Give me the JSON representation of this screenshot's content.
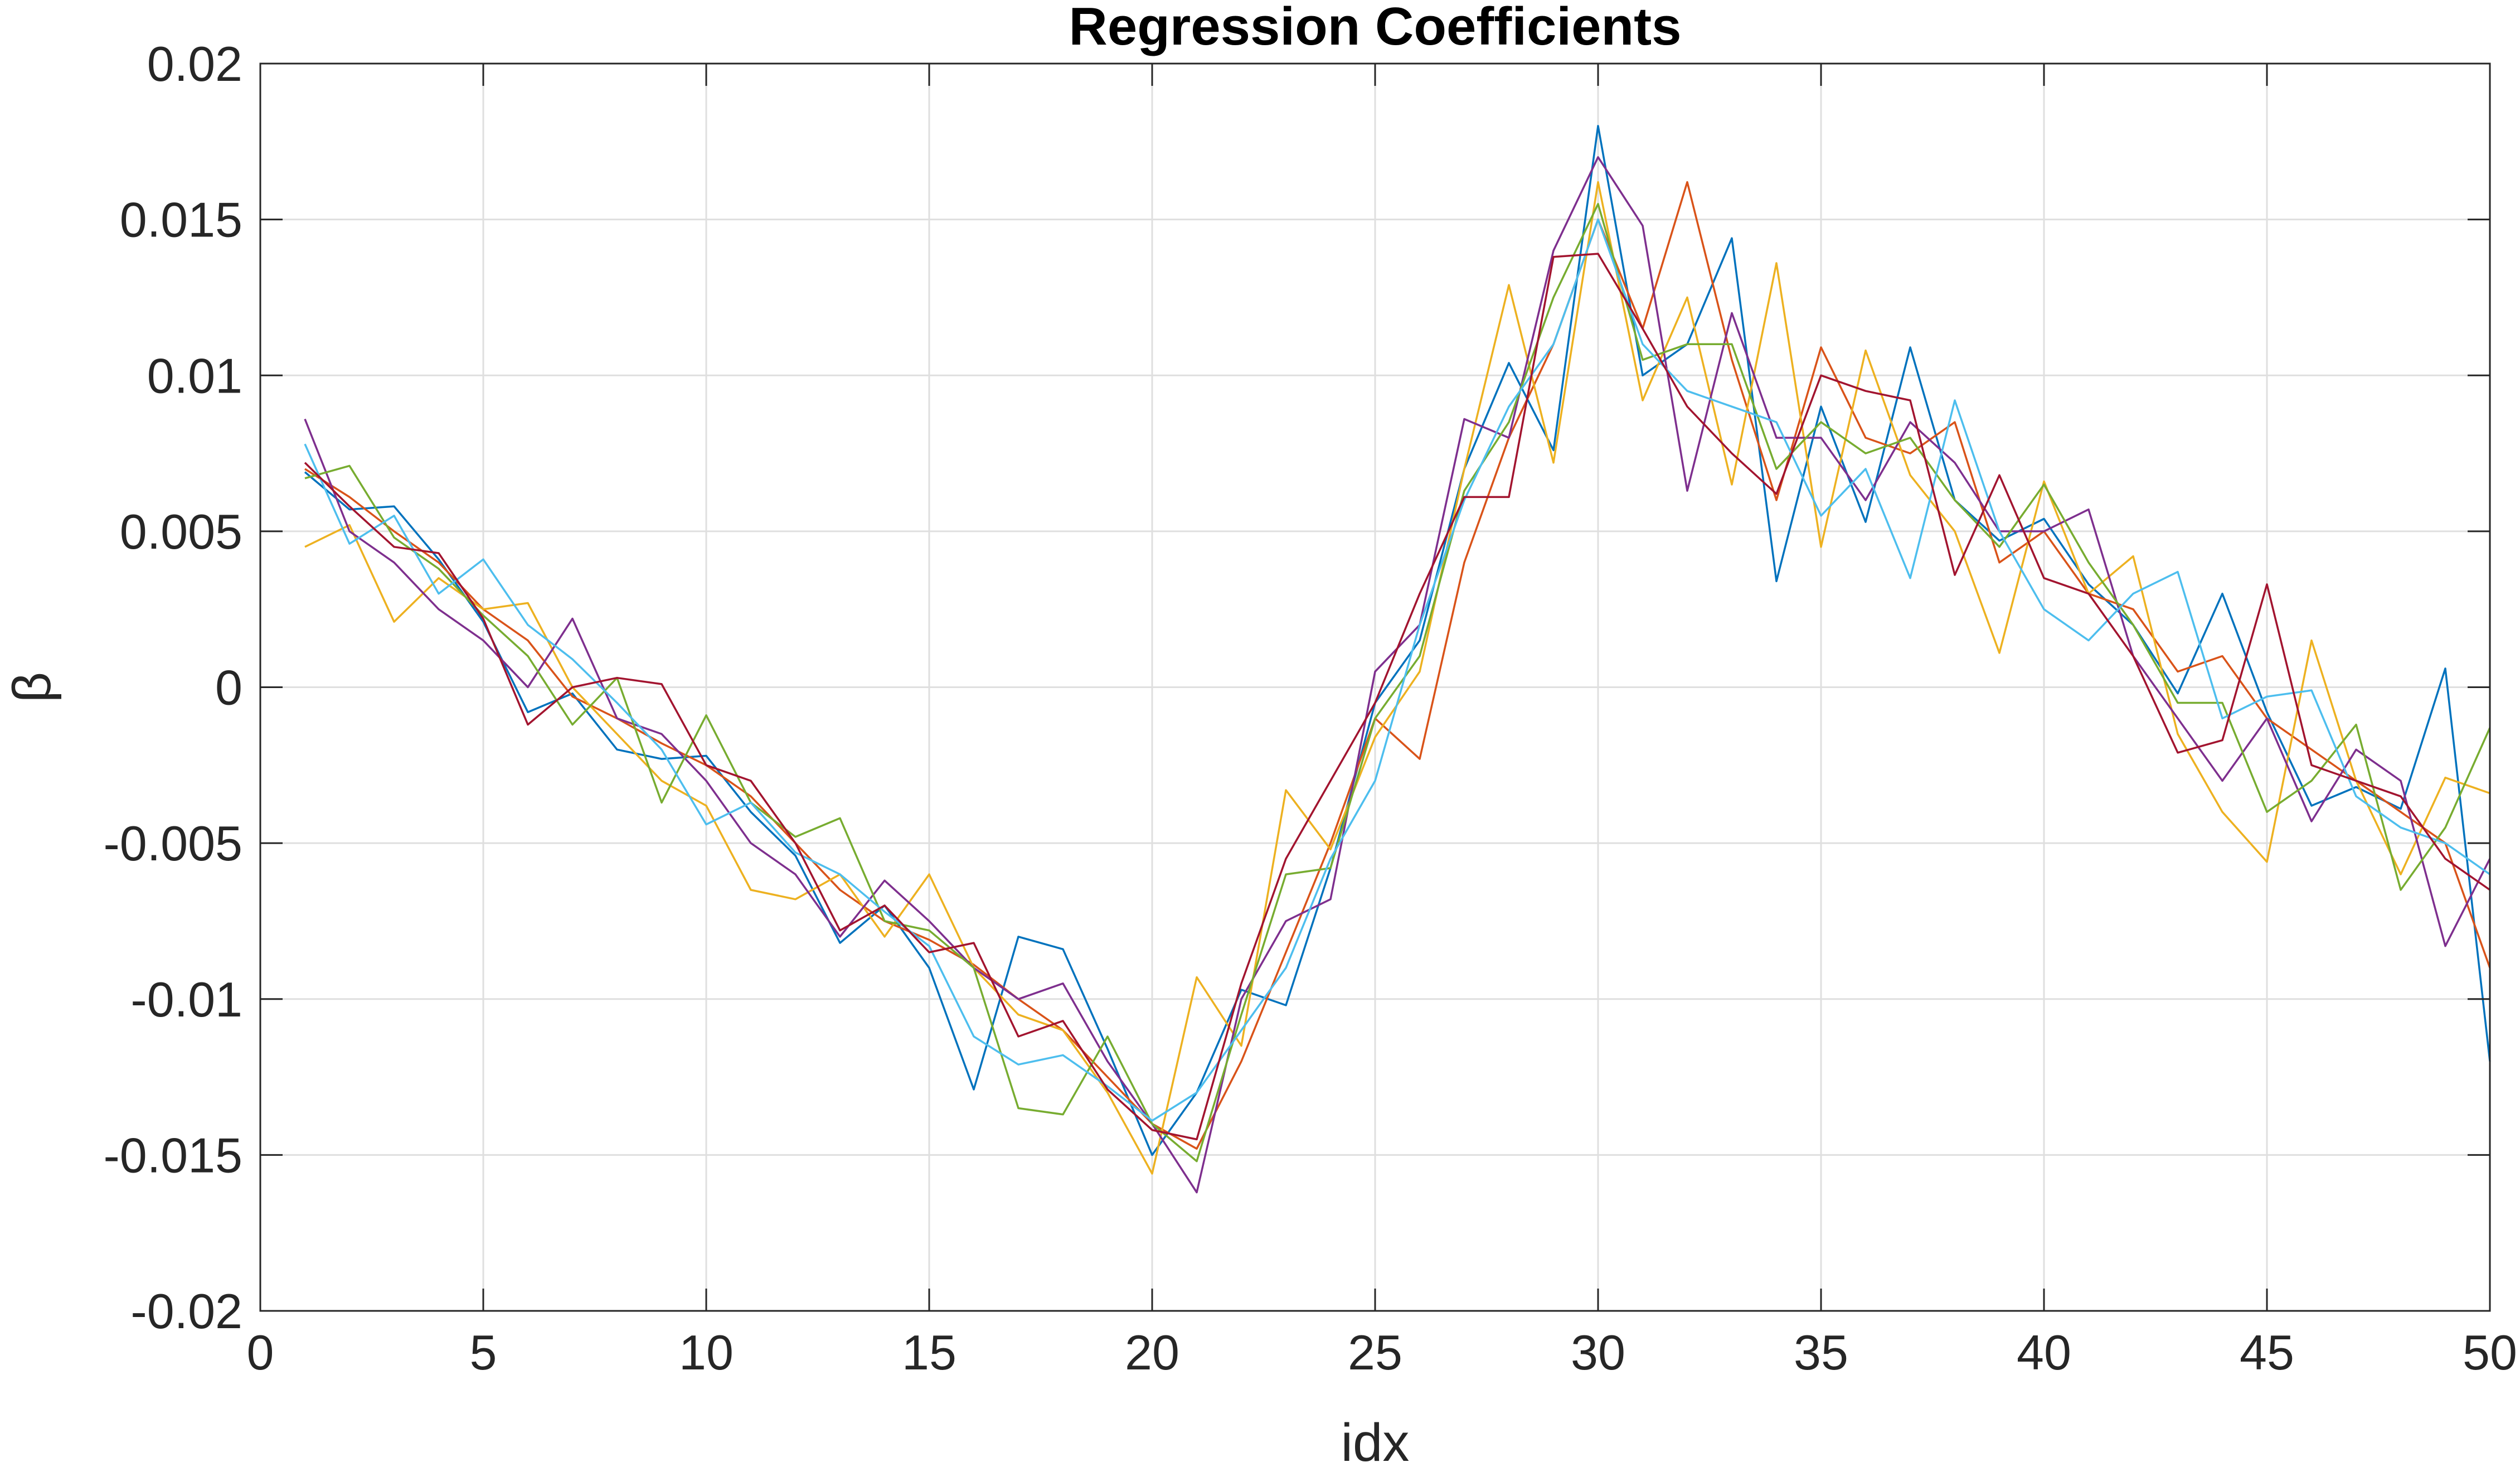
{
  "chart_data": {
    "type": "line",
    "title": "Regression Coefficients",
    "xlabel": "idx",
    "ylabel": "β",
    "xlim": [
      0,
      50
    ],
    "ylim": [
      -0.02,
      0.02
    ],
    "grid": true,
    "x_ticks": [
      0,
      5,
      10,
      15,
      20,
      25,
      30,
      35,
      40,
      45,
      50
    ],
    "x_tick_labels": [
      "0",
      "5",
      "10",
      "15",
      "20",
      "25",
      "30",
      "35",
      "40",
      "45",
      "50"
    ],
    "y_ticks": [
      -0.02,
      -0.015,
      -0.01,
      -0.005,
      0,
      0.005,
      0.01,
      0.015,
      0.02
    ],
    "y_tick_labels": [
      "-0.02",
      "-0.015",
      "-0.01",
      "-0.005",
      "0",
      "0.005",
      "0.01",
      "0.015",
      "0.02"
    ],
    "x": [
      1,
      2,
      3,
      4,
      5,
      6,
      7,
      8,
      9,
      10,
      11,
      12,
      13,
      14,
      15,
      16,
      17,
      18,
      19,
      20,
      21,
      22,
      23,
      24,
      25,
      26,
      27,
      28,
      29,
      30,
      31,
      32,
      33,
      34,
      35,
      36,
      37,
      38,
      39,
      40,
      41,
      42,
      43,
      44,
      45,
      46,
      47,
      48,
      49,
      50
    ],
    "series": [
      {
        "color": "#0072BD",
        "values": [
          0.0069,
          0.0057,
          0.0058,
          0.0041,
          0.0021,
          -0.0008,
          -0.0002,
          -0.002,
          -0.0023,
          -0.0022,
          -0.004,
          -0.0054,
          -0.0082,
          -0.007,
          -0.009,
          -0.0129,
          -0.008,
          -0.0084,
          -0.0116,
          -0.015,
          -0.013,
          -0.0097,
          -0.0102,
          -0.0058,
          -0.0005,
          0.0015,
          0.007,
          0.0104,
          0.0076,
          0.018,
          0.01,
          0.011,
          0.0144,
          0.0034,
          0.009,
          0.0053,
          0.0109,
          0.006,
          0.0047,
          0.0054,
          0.0033,
          0.002,
          -0.0002,
          0.003,
          -0.0008,
          -0.0038,
          -0.0032,
          -0.0039,
          0.0006,
          -0.012
        ]
      },
      {
        "color": "#D95319",
        "values": [
          0.007,
          0.0061,
          0.005,
          0.004,
          0.0025,
          0.0015,
          -0.0003,
          -0.001,
          -0.0018,
          -0.0025,
          -0.0035,
          -0.005,
          -0.0065,
          -0.0075,
          -0.0081,
          -0.0089,
          -0.01,
          -0.011,
          -0.0125,
          -0.014,
          -0.0148,
          -0.012,
          -0.0085,
          -0.005,
          -0.001,
          -0.0023,
          0.004,
          0.008,
          0.011,
          0.015,
          0.0115,
          0.0162,
          0.0105,
          0.006,
          0.0109,
          0.008,
          0.0075,
          0.0085,
          0.004,
          0.005,
          0.003,
          0.0025,
          0.0005,
          0.001,
          -0.001,
          -0.002,
          -0.003,
          -0.004,
          -0.005,
          -0.009
        ]
      },
      {
        "color": "#EDB120",
        "values": [
          0.0045,
          0.0052,
          0.0021,
          0.0035,
          0.0025,
          0.0027,
          0.0,
          -0.0015,
          -0.003,
          -0.0038,
          -0.0065,
          -0.0068,
          -0.006,
          -0.008,
          -0.006,
          -0.009,
          -0.0105,
          -0.011,
          -0.013,
          -0.0156,
          -0.0093,
          -0.0115,
          -0.0033,
          -0.0052,
          -0.0016,
          0.0005,
          0.007,
          0.0129,
          0.0072,
          0.0162,
          0.0092,
          0.0125,
          0.0065,
          0.0136,
          0.0045,
          0.0108,
          0.0068,
          0.005,
          0.0011,
          0.0066,
          0.003,
          0.0042,
          -0.0015,
          -0.004,
          -0.0056,
          0.0015,
          -0.003,
          -0.006,
          -0.0029,
          -0.0034
        ]
      },
      {
        "color": "#7E2F8E",
        "values": [
          0.0086,
          0.005,
          0.004,
          0.0025,
          0.0015,
          0.0,
          0.0022,
          -0.001,
          -0.0015,
          -0.003,
          -0.005,
          -0.006,
          -0.008,
          -0.0062,
          -0.0075,
          -0.009,
          -0.01,
          -0.0095,
          -0.012,
          -0.014,
          -0.0162,
          -0.01,
          -0.0075,
          -0.0068,
          0.0005,
          0.002,
          0.0086,
          0.008,
          0.014,
          0.017,
          0.0148,
          0.0063,
          0.012,
          0.008,
          0.008,
          0.006,
          0.0085,
          0.0072,
          0.005,
          0.005,
          0.0057,
          0.001,
          -0.001,
          -0.003,
          -0.001,
          -0.0043,
          -0.002,
          -0.003,
          -0.0083,
          -0.0055
        ]
      },
      {
        "color": "#77AC30",
        "values": [
          0.0067,
          0.0071,
          0.0048,
          0.0038,
          0.0023,
          0.001,
          -0.0012,
          0.0003,
          -0.0037,
          -0.0009,
          -0.0037,
          -0.0048,
          -0.0042,
          -0.0075,
          -0.0078,
          -0.009,
          -0.0135,
          -0.0137,
          -0.0112,
          -0.014,
          -0.0152,
          -0.0105,
          -0.006,
          -0.0058,
          -0.001,
          0.001,
          0.0063,
          0.0085,
          0.0125,
          0.0155,
          0.0105,
          0.011,
          0.011,
          0.007,
          0.0085,
          0.0075,
          0.008,
          0.006,
          0.0045,
          0.0065,
          0.004,
          0.002,
          -0.0005,
          -0.0005,
          -0.004,
          -0.003,
          -0.0012,
          -0.0065,
          -0.0045,
          -0.0013
        ]
      },
      {
        "color": "#4DBEEE",
        "values": [
          0.0078,
          0.0046,
          0.0055,
          0.003,
          0.0041,
          0.002,
          0.0009,
          -0.0005,
          -0.002,
          -0.0044,
          -0.0037,
          -0.0053,
          -0.006,
          -0.0072,
          -0.0083,
          -0.0112,
          -0.0121,
          -0.0118,
          -0.0128,
          -0.0139,
          -0.013,
          -0.011,
          -0.009,
          -0.0055,
          -0.003,
          0.002,
          0.006,
          0.009,
          0.011,
          0.015,
          0.011,
          0.0095,
          0.009,
          0.0085,
          0.0055,
          0.007,
          0.0035,
          0.0092,
          0.005,
          0.0025,
          0.0015,
          0.003,
          0.0037,
          -0.001,
          -0.0003,
          -0.0001,
          -0.0035,
          -0.0045,
          -0.005,
          -0.006
        ]
      },
      {
        "color": "#A2142F",
        "values": [
          0.0072,
          0.0058,
          0.0045,
          0.0043,
          0.0022,
          -0.0012,
          0.0,
          0.0003,
          0.0001,
          -0.0025,
          -0.003,
          -0.005,
          -0.0078,
          -0.007,
          -0.0085,
          -0.0082,
          -0.0112,
          -0.0107,
          -0.0129,
          -0.0142,
          -0.0145,
          -0.0095,
          -0.0055,
          -0.003,
          -0.0005,
          0.003,
          0.0061,
          0.0061,
          0.0138,
          0.0139,
          0.0115,
          0.009,
          0.0075,
          0.0062,
          0.01,
          0.0095,
          0.0092,
          0.0036,
          0.0068,
          0.0035,
          0.003,
          0.001,
          -0.0021,
          -0.0017,
          0.0033,
          -0.0025,
          -0.003,
          -0.0035,
          -0.0055,
          -0.0065
        ]
      }
    ]
  }
}
